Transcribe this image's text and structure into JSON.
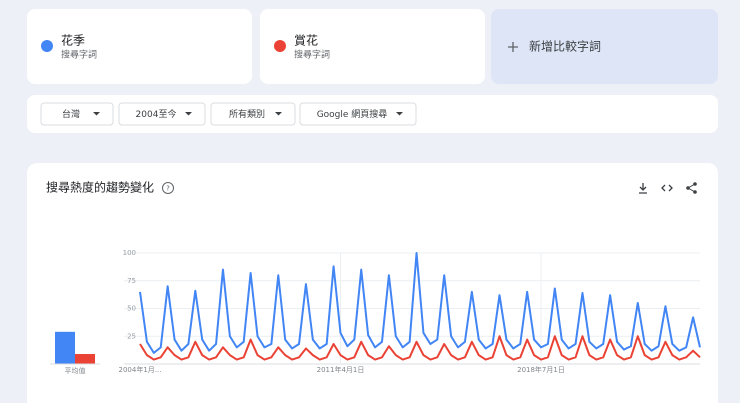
{
  "term_cards": [
    {
      "subtitle": "搜尋字詞"
    },
    {
      "subtitle": "搜尋字詞"
    }
  ],
  "add_term": "新增比較字詞",
  "filters": [
    "台灣",
    "2004至今",
    "所有類別",
    "Google 網頁搜尋"
  ],
  "section_title": "搜尋熱度的趨勢變化",
  "chart_data": [
    {
      "type": "bar",
      "categories": [
        "平均值"
      ],
      "ylim": [
        0,
        100
      ],
      "series": [
        {
          "color": "#4285f4",
          "values": [
            29
          ]
        },
        {
          "color": "#ea4335",
          "values": [
            9
          ]
        }
      ]
    },
    {
      "type": "line",
      "ylim": [
        0,
        100
      ],
      "yticks": [
        25,
        50,
        75,
        100
      ],
      "grid": true,
      "categories": [
        "2004年1月...",
        null,
        null,
        null,
        null,
        null,
        null,
        null,
        null,
        null,
        null,
        null,
        null,
        null,
        null,
        null,
        null,
        null,
        null,
        null,
        null,
        null,
        null,
        null,
        null,
        null,
        null,
        null,
        null,
        "2011年4月1日",
        null,
        null,
        null,
        null,
        null,
        null,
        null,
        null,
        null,
        null,
        null,
        null,
        null,
        null,
        null,
        null,
        null,
        null,
        null,
        null,
        null,
        null,
        null,
        null,
        null,
        null,
        null,
        null,
        "2018年7月1日",
        null,
        null,
        null,
        null,
        null,
        null,
        null,
        null,
        null,
        null,
        null,
        null,
        null,
        null,
        null,
        null,
        null,
        null,
        null,
        null,
        null,
        null,
        null
      ],
      "series": [
        {
          "name": "花季",
          "color": "#4285f4",
          "values": [
            65,
            20,
            10,
            15,
            70,
            22,
            12,
            18,
            66,
            22,
            12,
            18,
            85,
            25,
            15,
            20,
            82,
            25,
            15,
            18,
            80,
            22,
            14,
            18,
            72,
            22,
            14,
            18,
            88,
            28,
            16,
            22,
            85,
            26,
            15,
            20,
            80,
            25,
            15,
            20,
            100,
            28,
            18,
            22,
            80,
            25,
            15,
            20,
            65,
            22,
            14,
            18,
            62,
            22,
            14,
            18,
            65,
            22,
            15,
            18,
            68,
            22,
            14,
            18,
            64,
            20,
            14,
            18,
            62,
            20,
            13,
            16,
            55,
            18,
            12,
            16,
            52,
            18,
            12,
            15,
            42,
            15
          ]
        },
        {
          "name": "賞花",
          "color": "#ea4335",
          "values": [
            18,
            8,
            4,
            6,
            15,
            8,
            4,
            6,
            20,
            8,
            4,
            6,
            15,
            8,
            4,
            6,
            22,
            8,
            4,
            6,
            15,
            8,
            4,
            6,
            14,
            8,
            4,
            6,
            18,
            8,
            4,
            6,
            20,
            8,
            4,
            6,
            16,
            8,
            4,
            6,
            20,
            8,
            4,
            6,
            18,
            8,
            4,
            6,
            20,
            8,
            4,
            6,
            25,
            8,
            4,
            6,
            22,
            8,
            4,
            6,
            25,
            8,
            4,
            6,
            25,
            8,
            4,
            6,
            22,
            8,
            4,
            6,
            25,
            8,
            4,
            6,
            20,
            8,
            4,
            6,
            12,
            6
          ]
        }
      ]
    }
  ]
}
